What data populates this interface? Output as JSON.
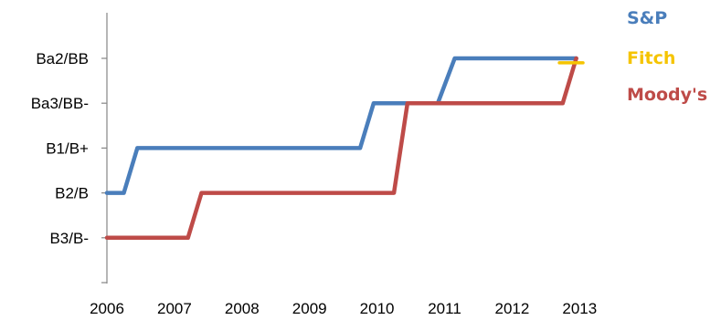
{
  "chart_data": {
    "type": "line",
    "title": "",
    "xlabel": "",
    "ylabel": "",
    "x_ticks": [
      "2006",
      "2007",
      "2008",
      "2009",
      "2010",
      "2011",
      "2012",
      "2013"
    ],
    "y_ticks": [
      "",
      "B3/B-",
      "B2/B",
      "B1/B+",
      "Ba3/BB-",
      "Ba2/BB"
    ],
    "xlim": [
      2006,
      2013
    ],
    "ylim": [
      0,
      6
    ],
    "grid": false,
    "legend_position": "right",
    "series": [
      {
        "name": "S&P",
        "color": "#4a7ebb",
        "points": [
          [
            2006.0,
            2
          ],
          [
            2006.25,
            2
          ],
          [
            2006.45,
            3
          ],
          [
            2009.75,
            3
          ],
          [
            2009.95,
            4
          ],
          [
            2010.9,
            4
          ],
          [
            2011.15,
            5
          ],
          [
            2012.95,
            5
          ]
        ]
      },
      {
        "name": "Fitch",
        "color": "#f5c400",
        "points": [
          [
            2012.7,
            4.9
          ],
          [
            2013.05,
            4.9
          ]
        ]
      },
      {
        "name": "Moody's",
        "color": "#be4b48",
        "points": [
          [
            2006.0,
            1
          ],
          [
            2007.2,
            1
          ],
          [
            2007.4,
            2
          ],
          [
            2010.25,
            2
          ],
          [
            2010.45,
            4
          ],
          [
            2012.75,
            4
          ],
          [
            2012.95,
            5
          ]
        ]
      }
    ]
  }
}
